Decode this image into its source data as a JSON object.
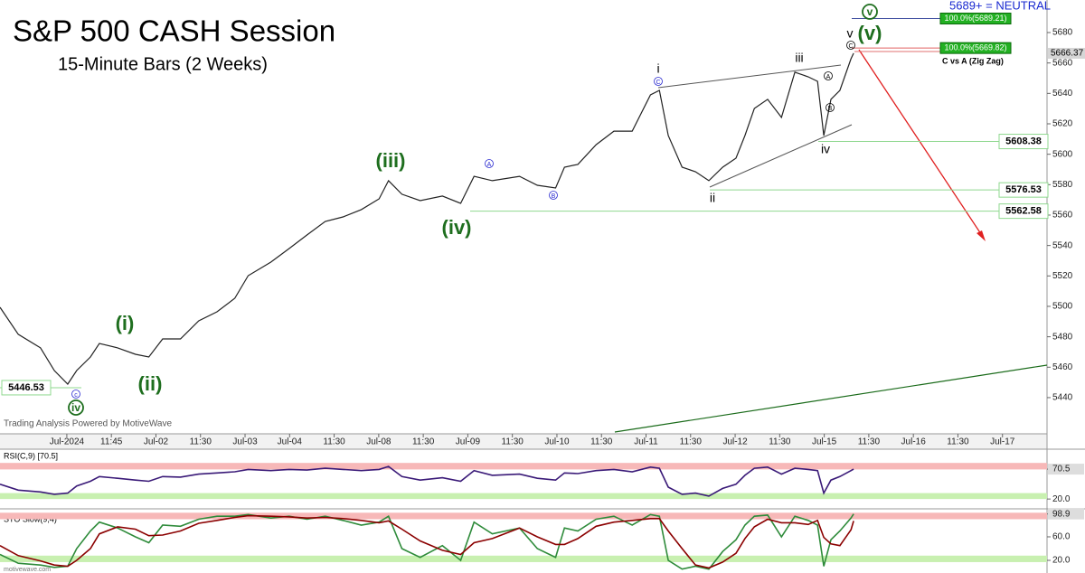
{
  "chart_data": [
    {
      "type": "line",
      "title": "S&P 500 CASH Session",
      "subtitle": "15-Minute Bars (2 Weeks)",
      "watermark": "Trading Analysis Powered by MotiveWave",
      "footer": "motivewave.com",
      "neutral_note": "5689+ = NEUTRAL",
      "target_note": "C vs A (Zig Zag)",
      "color": "#222222",
      "x": [
        0,
        0.41,
        0.91,
        1.22,
        1.52,
        1.72,
        2.03,
        2.23,
        2.64,
        3.04,
        3.34,
        3.65,
        4.05,
        4.46,
        4.87,
        5.27,
        5.57,
        6.08,
        6.49,
        6.89,
        7.3,
        7.7,
        8.11,
        8.51,
        8.72,
        9.02,
        9.43,
        9.93,
        10.34,
        10.64,
        11.05,
        11.66,
        12.06,
        12.47,
        12.67,
        12.97,
        13.38,
        13.78,
        14.19,
        14.6,
        14.8,
        15.0,
        15.31,
        15.61,
        15.91,
        16.22,
        16.52,
        16.72,
        16.93,
        17.23,
        17.54,
        17.84,
        18.14,
        18.35,
        18.49,
        18.65,
        18.85,
        19.1,
        19.16
      ],
      "values": [
        5499.4,
        5481.6,
        5472.7,
        5457.8,
        5448.9,
        5457.8,
        5466.7,
        5475.6,
        5472.7,
        5468.5,
        5466.7,
        5478.6,
        5478.6,
        5490.5,
        5496.4,
        5505.3,
        5520.2,
        5529.1,
        5538.0,
        5546.9,
        5555.8,
        5558.8,
        5563.6,
        5570.7,
        5582.6,
        5573.7,
        5569.5,
        5572.5,
        5567.7,
        5585.5,
        5582.6,
        5585.5,
        5579.6,
        5577.8,
        5591.5,
        5593.3,
        5606.3,
        5615.2,
        5615.2,
        5639.0,
        5642.0,
        5612.3,
        5591.5,
        5588.5,
        5582.6,
        5591.5,
        5597.4,
        5612.3,
        5630.1,
        5636.1,
        5624.2,
        5653.9,
        5650.9,
        5647.9,
        5612.3,
        5636.1,
        5642.0,
        5662.8,
        5666.4
      ],
      "xlim": [
        0,
        23.5
      ],
      "ylim": [
        5416.2,
        5701.4
      ],
      "xticks": [
        {
          "value": 1.5,
          "label": "Jul-2024"
        },
        {
          "value": 2.5,
          "label": "11:45"
        },
        {
          "value": 3.5,
          "label": "Jul-02"
        },
        {
          "value": 4.5,
          "label": "11:30"
        },
        {
          "value": 5.5,
          "label": "Jul-03"
        },
        {
          "value": 6.5,
          "label": "Jul-04"
        },
        {
          "value": 7.5,
          "label": "11:30"
        },
        {
          "value": 8.5,
          "label": "Jul-08"
        },
        {
          "value": 9.5,
          "label": "11:30"
        },
        {
          "value": 10.5,
          "label": "Jul-09"
        },
        {
          "value": 11.5,
          "label": "11:30"
        },
        {
          "value": 12.5,
          "label": "Jul-10"
        },
        {
          "value": 13.5,
          "label": "11:30"
        },
        {
          "value": 14.5,
          "label": "Jul-11"
        },
        {
          "value": 15.5,
          "label": "11:30"
        },
        {
          "value": 16.5,
          "label": "Jul-12"
        },
        {
          "value": 17.5,
          "label": "11:30"
        },
        {
          "value": 18.5,
          "label": "Jul-15"
        },
        {
          "value": 19.5,
          "label": "11:30"
        },
        {
          "value": 20.5,
          "label": "Jul-16"
        },
        {
          "value": 21.5,
          "label": "11:30"
        },
        {
          "value": 22.5,
          "label": "Jul-17"
        }
      ],
      "yticks": [
        5440,
        5460,
        5480,
        5500,
        5520,
        5540,
        5560,
        5580,
        5600,
        5620,
        5640,
        5660,
        5680
      ],
      "last_price": {
        "value": 5666.37,
        "label": "5666.37"
      },
      "levels": [
        {
          "value": 5608.38,
          "label": "5608.38"
        },
        {
          "value": 5576.53,
          "label": "5576.53"
        },
        {
          "value": 5562.58,
          "label": "5562.58"
        },
        {
          "value": 5446.53,
          "label": "5446.53"
        }
      ],
      "fib_levels": [
        {
          "value": 5689.21,
          "label": "100.0%(5689.21)"
        },
        {
          "value": 5669.82,
          "label": "100.0%(5669.82)"
        }
      ],
      "annotations": [
        {
          "text": "(i)",
          "style": "major"
        },
        {
          "text": "(ii)",
          "style": "major"
        },
        {
          "text": "(iii)",
          "style": "major"
        },
        {
          "text": "(iv)",
          "style": "major"
        },
        {
          "text": "(v)",
          "style": "major"
        },
        {
          "text": "iv",
          "style": "circled"
        },
        {
          "text": "v",
          "style": "circled"
        },
        {
          "text": "i",
          "style": "minor"
        },
        {
          "text": "ii",
          "style": "minor"
        },
        {
          "text": "iii",
          "style": "minor"
        },
        {
          "text": "iv",
          "style": "minor"
        },
        {
          "text": "v",
          "style": "minor"
        },
        {
          "text": "c",
          "style": "small-blue"
        },
        {
          "text": "C",
          "style": "small-blue"
        },
        {
          "text": "A",
          "style": "small-blue"
        },
        {
          "text": "B",
          "style": "small-blue"
        },
        {
          "text": "A",
          "style": "small-black"
        },
        {
          "text": "B",
          "style": "small-black"
        },
        {
          "text": "C",
          "style": "small-black"
        }
      ]
    },
    {
      "type": "line",
      "title": "RSI(C,9) [70.5]",
      "color": "#3a1a78",
      "x": [
        0,
        0.41,
        0.91,
        1.22,
        1.52,
        1.72,
        2.03,
        2.23,
        2.64,
        3.04,
        3.34,
        3.65,
        4.05,
        4.46,
        4.87,
        5.27,
        5.57,
        6.08,
        6.49,
        6.89,
        7.3,
        7.7,
        8.11,
        8.51,
        8.72,
        9.02,
        9.43,
        9.93,
        10.34,
        10.64,
        11.05,
        11.66,
        12.06,
        12.47,
        12.67,
        12.97,
        13.38,
        13.78,
        14.19,
        14.6,
        14.8,
        15.0,
        15.31,
        15.61,
        15.91,
        16.22,
        16.52,
        16.72,
        16.93,
        17.23,
        17.54,
        17.84,
        18.14,
        18.35,
        18.49,
        18.65,
        18.85,
        19.1,
        19.16
      ],
      "values": [
        45,
        35,
        32,
        28,
        30,
        42,
        50,
        58,
        55,
        52,
        50,
        58,
        57,
        62,
        64,
        66,
        70,
        68,
        70,
        69,
        72,
        70,
        68,
        70,
        75,
        58,
        52,
        56,
        50,
        68,
        60,
        62,
        55,
        52,
        64,
        63,
        68,
        70,
        66,
        74,
        72,
        40,
        28,
        30,
        25,
        38,
        45,
        60,
        72,
        74,
        62,
        72,
        70,
        68,
        30,
        52,
        58,
        68,
        70.5
      ],
      "xlim": [
        0,
        23.5
      ],
      "ylim": [
        8,
        104.2
      ],
      "yticks": [
        70.5,
        {
          "value": 20,
          "label": "20.0"
        }
      ],
      "bands": [
        {
          "range": [
            70,
            81
          ],
          "color": "#f7b8b8"
        },
        {
          "range": [
            20,
            30
          ],
          "color": "#c8f0b0"
        }
      ]
    },
    {
      "type": "line",
      "title": "STO Slow(9,4)",
      "x": [
        0,
        0.41,
        0.91,
        1.22,
        1.52,
        1.72,
        2.03,
        2.23,
        2.64,
        3.04,
        3.34,
        3.65,
        4.05,
        4.46,
        4.87,
        5.27,
        5.57,
        6.08,
        6.49,
        6.89,
        7.3,
        7.7,
        8.11,
        8.51,
        8.72,
        9.02,
        9.43,
        9.93,
        10.34,
        10.64,
        11.05,
        11.66,
        12.06,
        12.47,
        12.67,
        12.97,
        13.38,
        13.78,
        14.19,
        14.6,
        14.8,
        15.0,
        15.31,
        15.61,
        15.91,
        16.22,
        16.52,
        16.72,
        16.93,
        17.23,
        17.54,
        17.84,
        18.14,
        18.35,
        18.49,
        18.65,
        18.85,
        19.1,
        19.16
      ],
      "series": [
        {
          "color": "#2e8b3a",
          "values": [
            30,
            15,
            12,
            8,
            10,
            40,
            70,
            85,
            75,
            60,
            50,
            80,
            78,
            90,
            95,
            95,
            98,
            92,
            95,
            90,
            95,
            88,
            80,
            85,
            95,
            40,
            25,
            45,
            20,
            85,
            65,
            75,
            40,
            25,
            75,
            70,
            90,
            95,
            80,
            98,
            95,
            20,
            5,
            10,
            5,
            35,
            55,
            80,
            95,
            97,
            60,
            95,
            88,
            80,
            10,
            55,
            70,
            92,
            98.9
          ]
        },
        {
          "color": "#8b0000",
          "values": [
            45,
            28,
            19,
            12,
            10,
            20,
            40,
            65,
            77,
            73,
            62,
            63,
            70,
            83,
            88,
            93,
            96,
            95,
            94,
            92,
            93,
            91,
            88,
            84,
            87,
            73,
            53,
            37,
            30,
            50,
            57,
            75,
            60,
            47,
            47,
            57,
            78,
            85,
            88,
            91,
            91,
            70,
            40,
            12,
            7,
            17,
            32,
            57,
            77,
            90,
            84,
            84,
            81,
            88,
            59,
            48,
            45,
            72,
            87
          ]
        }
      ],
      "xlim": [
        0,
        23.5
      ],
      "ylim": [
        4.6,
        101.5
      ],
      "yticks": [
        98.9,
        {
          "value": 60,
          "label": "60.0"
        },
        {
          "value": 20,
          "label": "20.0"
        }
      ],
      "bands": [
        {
          "range": [
            90,
            101
          ],
          "color": "#f7b8b8"
        },
        {
          "range": [
            17,
            28
          ],
          "color": "#c8f0b0"
        }
      ]
    }
  ]
}
